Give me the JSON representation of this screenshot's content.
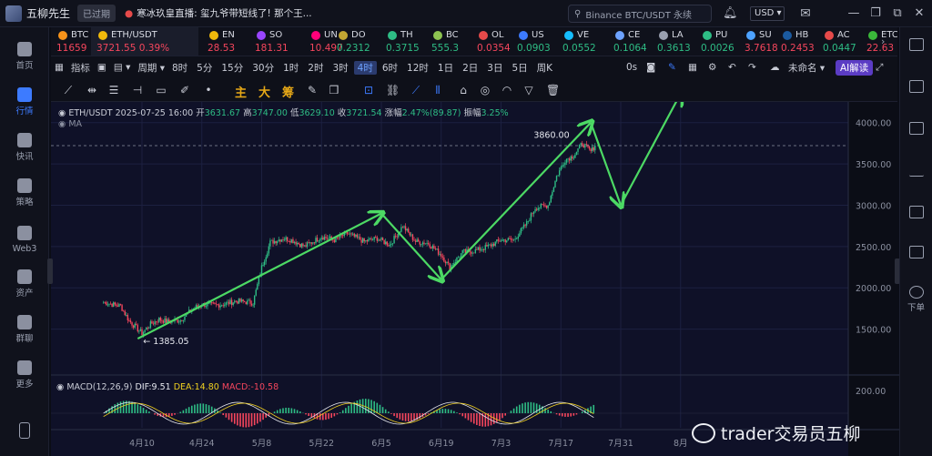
{
  "titlebar": {
    "app_name": "五柳先生",
    "expired_badge": "已过期",
    "news": "寒冰玖皇直播: 玺九爷带短线了! 那个王...",
    "search_placeholder": "Binance BTC/USDT 永续",
    "currency": "USD"
  },
  "watchlist": [
    {
      "sym": "BTC",
      "price": "11659",
      "dir": "dn",
      "color": "#f7931a"
    },
    {
      "sym": "ETH/USDT",
      "price": "3721.55  0.39%",
      "dir": "dn",
      "color": "#f0b90b",
      "active": true
    },
    {
      "sym": "EN",
      "price": "28.53",
      "dir": "dn",
      "color": "#f0b90b"
    },
    {
      "sym": "SO",
      "price": "181.31",
      "dir": "dn",
      "color": "#9945ff"
    },
    {
      "sym": "UN",
      "price": "10.497",
      "dir": "dn",
      "color": "#ff007a"
    },
    {
      "sym": "DO",
      "price": "0.2312",
      "dir": "up",
      "color": "#c2a633"
    },
    {
      "sym": "TH",
      "price": "0.3715",
      "dir": "up",
      "color": "#2ebd85"
    },
    {
      "sym": "BC",
      "price": "555.3",
      "dir": "up",
      "color": "#8dc351"
    },
    {
      "sym": "OL",
      "price": "0.0354",
      "dir": "dn",
      "color": "#e64a4a"
    },
    {
      "sym": "US",
      "price": "0.0903",
      "dir": "up",
      "color": "#3d7bff"
    },
    {
      "sym": "VE",
      "price": "0.0552",
      "dir": "up",
      "color": "#15bdff"
    },
    {
      "sym": "CE",
      "price": "0.1064",
      "dir": "up",
      "color": "#6da2ff"
    },
    {
      "sym": "LA",
      "price": "0.3613",
      "dir": "up",
      "color": "#9aa0b0"
    },
    {
      "sym": "PU",
      "price": "0.0026",
      "dir": "up",
      "color": "#2ebd85"
    },
    {
      "sym": "SU",
      "price": "3.7618",
      "dir": "dn",
      "color": "#4da2ff"
    },
    {
      "sym": "HB",
      "price": "0.2453",
      "dir": "dn",
      "color": "#1b5aa0"
    },
    {
      "sym": "AC",
      "price": "0.0447",
      "dir": "up",
      "color": "#e64a4a"
    },
    {
      "sym": "ETC",
      "price": "22.63",
      "dir": "dn",
      "color": "#3ab83a"
    }
  ],
  "leftnav": [
    {
      "label": "首页"
    },
    {
      "label": "行情",
      "active": true
    },
    {
      "label": "快讯"
    },
    {
      "label": "策略"
    },
    {
      "label": "Web3"
    },
    {
      "label": "资产"
    },
    {
      "label": "群聊"
    },
    {
      "label": "更多"
    }
  ],
  "timeframes": {
    "indicator": "指标",
    "period": "周期",
    "items": [
      "8时",
      "5分",
      "15分",
      "30分",
      "1时",
      "2时",
      "3时",
      "4时",
      "6时",
      "12时",
      "1日",
      "2日",
      "3日",
      "5日",
      "周K"
    ],
    "selected": "4时",
    "countdown": "0s",
    "unnamed": "未命名",
    "ai": "AI解读"
  },
  "draw_chars": [
    "主",
    "大",
    "筹"
  ],
  "chart_info": {
    "symbol": "ETH/USDT",
    "time": "2025-07-25 16:00",
    "open_label": "开",
    "open": "3631.67",
    "high_label": "高",
    "high": "3747.00",
    "low_label": "低",
    "low": "3629.10",
    "close_label": "收",
    "close": "3721.54",
    "chg_label": "涨幅",
    "chg": "2.47%(89.87)",
    "amp_label": "振幅",
    "amp": "3.25%",
    "ma": "MA"
  },
  "macd": {
    "name": "MACD(12,26,9)",
    "dif": "DIF:9.51",
    "dea": "DEA:14.80",
    "macd": "MACD:-10.58"
  },
  "annotations": {
    "high": "3860.00",
    "low": "← 1385.05"
  },
  "rightnav_label": "下单",
  "watermark": "trader交易员五柳",
  "chart_data": {
    "type": "candlestick",
    "title": "ETH/USDT",
    "y_ticks": [
      1500.0,
      2000.0,
      2500.0,
      3000.0,
      3500.0,
      4000.0
    ],
    "y_tick_labels": [
      "1500.00",
      "2000.00",
      "2500.00",
      "3000.00",
      "3500.00",
      "4000.00"
    ],
    "macd_tick": "200.00",
    "x_tick_labels": [
      "4月10",
      "4月24",
      "5月8",
      "5月22",
      "6月5",
      "6月19",
      "7月3",
      "7月17",
      "7月31",
      "8月"
    ],
    "ylim": [
      1000,
      4250
    ],
    "close_path": [
      [
        "4月1",
        1830
      ],
      [
        "4月3",
        1800
      ],
      [
        "4月5",
        1780
      ],
      [
        "4月7",
        1600
      ],
      [
        "4月9",
        1500
      ],
      [
        "4月10",
        1450
      ],
      [
        "4月12",
        1560
      ],
      [
        "4月14",
        1620
      ],
      [
        "4月16",
        1590
      ],
      [
        "4月19",
        1610
      ],
      [
        "4月22",
        1750
      ],
      [
        "4月24",
        1800
      ],
      [
        "4月26",
        1790
      ],
      [
        "4月29",
        1800
      ],
      [
        "5月2",
        1840
      ],
      [
        "5月6",
        1820
      ],
      [
        "5月8",
        2250
      ],
      [
        "5月10",
        2550
      ],
      [
        "5月13",
        2600
      ],
      [
        "5月15",
        2580
      ],
      [
        "5月18",
        2500
      ],
      [
        "5月22",
        2620
      ],
      [
        "5月25",
        2580
      ],
      [
        "5月28",
        2660
      ],
      [
        "6月1",
        2560
      ],
      [
        "6月4",
        2600
      ],
      [
        "6月7",
        2520
      ],
      [
        "6月10",
        2750
      ],
      [
        "6月13",
        2560
      ],
      [
        "6月16",
        2540
      ],
      [
        "6月19",
        2400
      ],
      [
        "6月21",
        2250
      ],
      [
        "6月24",
        2430
      ],
      [
        "6月27",
        2450
      ],
      [
        "6月30",
        2500
      ],
      [
        "7月3",
        2580
      ],
      [
        "7月6",
        2580
      ],
      [
        "7月9",
        2780
      ],
      [
        "7月11",
        2970
      ],
      [
        "7月14",
        3000
      ],
      [
        "7月16",
        3350
      ],
      [
        "7月18",
        3550
      ],
      [
        "7月20",
        3600
      ],
      [
        "7月22",
        3750
      ],
      [
        "7月24",
        3650
      ],
      [
        "7月25",
        3721
      ]
    ],
    "last_price": 3721.54,
    "annotated_high": 3860.0,
    "annotated_low": 1385.05,
    "projection": [
      [
        "4月9",
        1385
      ],
      [
        "6月5",
        2900
      ],
      [
        "6月19",
        2100
      ],
      [
        "7月24",
        4000
      ],
      [
        "7月31",
        3000
      ],
      [
        "8月14",
        4350
      ]
    ]
  }
}
